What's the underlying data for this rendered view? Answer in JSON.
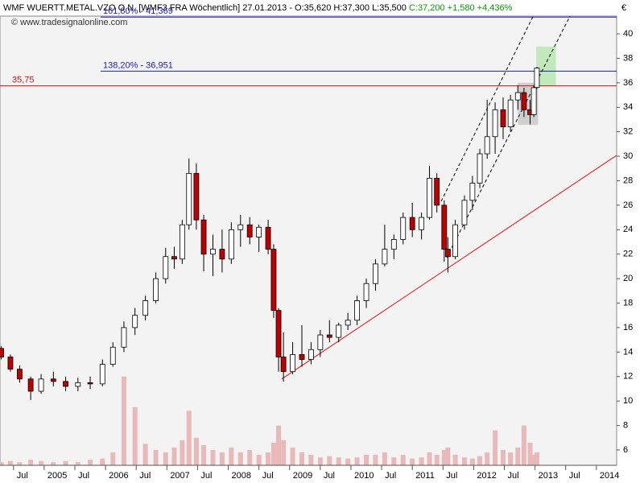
{
  "chart_data": {
    "type": "candlestick",
    "title": "WMF WUERTT.METAL.VZO O.N. [WMF3 FRA  Wöchentlich] 27.01.2013 - O:35,620 H:37,300 L:35,500 ",
    "title_change": "C:37,200 +1,580 +4,436%",
    "title_change_color": "#00a000",
    "watermark": "© www.tradesignalonline.com",
    "y_unit": "€",
    "up_color": "#ffffff",
    "down_color": "#c00000",
    "volume_color": "#e9b8b8",
    "x": [
      2004.3,
      2004.45,
      2004.6,
      2004.78,
      2004.95,
      2005.15,
      2005.35,
      2005.55,
      2005.75,
      2005.95,
      2006.12,
      2006.3,
      2006.48,
      2006.65,
      2006.82,
      2006.98,
      2007.12,
      2007.25,
      2007.36,
      2007.48,
      2007.6,
      2007.75,
      2007.9,
      2008.05,
      2008.2,
      2008.35,
      2008.5,
      2008.65,
      2008.74,
      2008.82,
      2008.9,
      2009.05,
      2009.2,
      2009.35,
      2009.5,
      2009.65,
      2009.8,
      2009.95,
      2010.1,
      2010.25,
      2010.4,
      2010.55,
      2010.7,
      2010.85,
      2011.0,
      2011.15,
      2011.28,
      2011.4,
      2011.52,
      2011.58,
      2011.7,
      2011.85,
      2011.98,
      2012.1,
      2012.22,
      2012.35,
      2012.48,
      2012.6,
      2012.72,
      2012.82,
      2012.92,
      2012.98,
      2013.03
    ],
    "open": [
      14.3,
      13.6,
      12.6,
      11.8,
      10.8,
      11.8,
      11.6,
      11.2,
      11.5,
      11.4,
      13.0,
      14.4,
      16.0,
      17.0,
      18.2,
      20.0,
      21.8,
      21.6,
      24.4,
      28.6,
      24.8,
      22.0,
      22.4,
      21.6,
      24.0,
      24.4,
      23.4,
      24.2,
      22.4,
      17.4,
      13.6,
      12.4,
      13.8,
      13.4,
      14.2,
      15.4,
      15.2,
      16.2,
      16.6,
      18.2,
      19.6,
      21.2,
      22.4,
      23.2,
      25.0,
      24.0,
      25.0,
      28.2,
      26.0,
      22.4,
      21.8,
      24.4,
      26.4,
      27.8,
      30.2,
      31.6,
      33.8,
      32.4,
      34.6,
      35.2,
      33.8,
      33.4,
      35.62
    ],
    "high": [
      14.5,
      13.8,
      12.9,
      12.0,
      12.2,
      12.4,
      12.0,
      11.9,
      12.0,
      13.4,
      14.8,
      16.5,
      17.6,
      18.6,
      20.5,
      22.5,
      22.6,
      24.8,
      29.8,
      29.4,
      25.2,
      23.6,
      24.0,
      24.6,
      25.2,
      25.0,
      24.4,
      24.8,
      22.8,
      17.6,
      15.6,
      14.8,
      16.2,
      14.8,
      15.8,
      16.6,
      16.4,
      17.2,
      18.6,
      20.0,
      21.6,
      24.4,
      23.6,
      25.4,
      26.2,
      25.4,
      29.2,
      28.6,
      26.4,
      23.4,
      24.8,
      26.8,
      28.4,
      30.6,
      34.6,
      34.4,
      34.8,
      35.0,
      35.8,
      35.6,
      34.6,
      35.8,
      37.3
    ],
    "low": [
      13.4,
      12.4,
      11.5,
      10.1,
      10.6,
      11.2,
      10.8,
      10.8,
      11.0,
      11.2,
      12.8,
      14.0,
      15.4,
      16.6,
      18.0,
      19.6,
      20.8,
      21.2,
      24.0,
      24.0,
      20.6,
      20.2,
      20.5,
      21.2,
      22.6,
      22.8,
      22.2,
      22.0,
      16.8,
      12.4,
      11.6,
      12.2,
      12.8,
      13.0,
      13.6,
      14.8,
      14.8,
      15.8,
      16.2,
      17.6,
      19.0,
      21.0,
      21.6,
      22.8,
      23.4,
      23.2,
      24.8,
      25.4,
      21.4,
      20.5,
      21.6,
      24.0,
      25.6,
      27.4,
      29.8,
      30.2,
      31.4,
      32.0,
      33.8,
      33.2,
      32.6,
      33.2,
      35.5
    ],
    "close": [
      13.6,
      12.6,
      11.8,
      10.8,
      11.8,
      11.6,
      11.2,
      11.5,
      11.4,
      13.0,
      14.4,
      16.0,
      17.0,
      18.2,
      20.0,
      21.8,
      21.6,
      24.4,
      28.6,
      24.8,
      22.0,
      22.4,
      21.6,
      24.0,
      24.4,
      23.4,
      24.2,
      22.4,
      17.4,
      13.6,
      12.4,
      13.8,
      13.4,
      14.2,
      15.4,
      15.2,
      16.2,
      16.6,
      18.2,
      19.6,
      21.2,
      22.4,
      23.2,
      25.0,
      24.0,
      25.0,
      28.2,
      26.0,
      22.4,
      21.8,
      24.4,
      26.4,
      27.8,
      30.2,
      31.6,
      33.8,
      32.4,
      34.6,
      35.2,
      33.8,
      33.4,
      35.6,
      37.2
    ],
    "volume": [
      5.0,
      5.1,
      5.0,
      5.2,
      5.1,
      5.0,
      5.1,
      5.0,
      5.2,
      5.3,
      5.8,
      12.0,
      9.5,
      6.5,
      6.0,
      5.8,
      6.2,
      6.8,
      9.2,
      7.0,
      6.4,
      6.0,
      5.8,
      6.2,
      5.8,
      6.0,
      5.6,
      5.8,
      6.6,
      8.0,
      6.8,
      6.2,
      5.8,
      5.6,
      5.4,
      5.5,
      5.4,
      5.3,
      5.4,
      5.6,
      5.6,
      5.8,
      5.4,
      5.6,
      5.3,
      5.4,
      5.8,
      5.6,
      6.0,
      6.2,
      5.6,
      5.4,
      5.3,
      5.5,
      5.8,
      7.6,
      6.0,
      5.8,
      6.2,
      8.0,
      6.6,
      5.6,
      5.8
    ],
    "xlim": [
      2004.28,
      2014.33
    ],
    "ylim": [
      4.75,
      41.45
    ],
    "xticks": [
      {
        "value": 2004.5,
        "label": "Jul"
      },
      2005,
      {
        "value": 2005.5,
        "label": "Jul"
      },
      2006,
      {
        "value": 2006.5,
        "label": "Jul"
      },
      2007,
      {
        "value": 2007.5,
        "label": "Jul"
      },
      2008,
      {
        "value": 2008.5,
        "label": "Jul"
      },
      2009,
      {
        "value": 2009.5,
        "label": "Jul"
      },
      2010,
      {
        "value": 2010.5,
        "label": "Jul"
      },
      2011,
      {
        "value": 2011.5,
        "label": "Jul"
      },
      2012,
      {
        "value": 2012.5,
        "label": "Jul"
      },
      2013,
      {
        "value": 2013.5,
        "label": "Jul"
      },
      2014
    ],
    "yticks": [
      6,
      8,
      10,
      12,
      14,
      16,
      18,
      20,
      22,
      24,
      26,
      28,
      30,
      32,
      34,
      36,
      38,
      40
    ],
    "levels": [
      {
        "label": "161,80% - 41,369",
        "value": 41.369,
        "x0": 2005.92,
        "color": "#1c1cc0"
      },
      {
        "label": "138,20% - 36,951",
        "value": 36.951,
        "x0": 2005.92,
        "color": "#1c1cc0"
      },
      {
        "label": "35,75",
        "value": 35.75,
        "x0": 2004.28,
        "color": "#d01010"
      }
    ],
    "lines": [
      {
        "x": [
          2008.87,
          2014.33
        ],
        "y": [
          11.79,
          30.07
        ],
        "color": "#e01010",
        "dashed": false
      },
      {
        "x": [
          2011.47,
          2012.97
        ],
        "y": [
          26.32,
          41.45
        ],
        "color": "#000000",
        "dashed": true
      },
      {
        "x": [
          2011.56,
          2013.57
        ],
        "y": [
          21.72,
          41.45
        ],
        "color": "#000000",
        "dashed": true
      }
    ],
    "boxes": [
      {
        "x": [
          2013.02,
          2013.34
        ],
        "y": [
          35.73,
          38.95
        ],
        "color": "#b8e6b0"
      },
      {
        "x": [
          2012.72,
          2013.05
        ],
        "y": [
          32.57,
          36.0
        ],
        "color": "#c8c8c8"
      }
    ]
  }
}
